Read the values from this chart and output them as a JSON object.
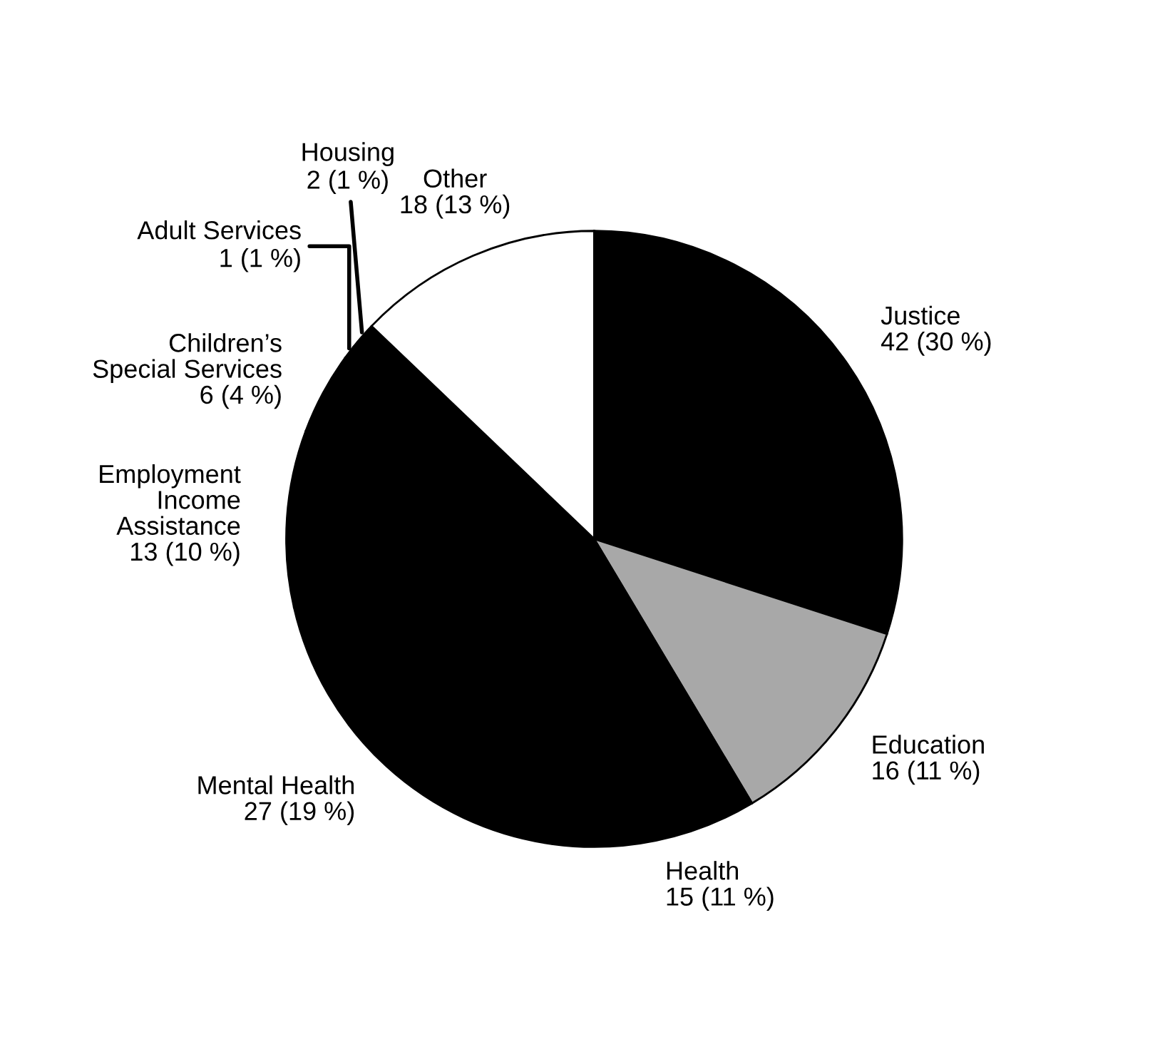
{
  "chart_data": {
    "type": "pie",
    "categories": [
      "Justice",
      "Education",
      "Health",
      "Mental Health",
      "Employment\nIncome\nAssistance",
      "Children’s\nSpecial Services",
      "Adult Services",
      "Housing",
      "Other"
    ],
    "values": [
      42,
      16,
      15,
      27,
      13,
      6,
      1,
      2,
      18
    ],
    "value_labels": [
      "42 (30 %)",
      "16 (11 %)",
      "15 (11 %)",
      "27 (19 %)",
      "13 (10 %)",
      "6 (4 %)",
      "1 (1 %)",
      "2 (1 %)",
      "18 (13 %)"
    ],
    "colors": [
      "#000000",
      "#a8a8a8",
      "#000000",
      "#000000",
      "#000000",
      "#000000",
      "#000000",
      "#000000",
      "#ffffff"
    ]
  }
}
